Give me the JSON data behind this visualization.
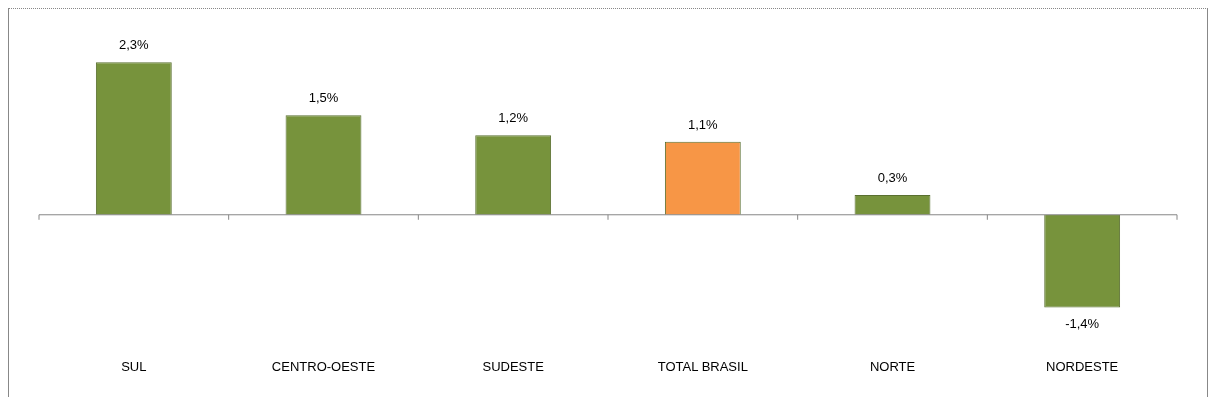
{
  "chart_data": {
    "type": "bar",
    "categories": [
      "SUL",
      "CENTRO-OESTE",
      "SUDESTE",
      "TOTAL BRASIL",
      "NORTE",
      "NORDESTE"
    ],
    "values": [
      2.3,
      1.5,
      1.2,
      1.1,
      0.3,
      -1.4
    ],
    "value_labels": [
      "2,3%",
      "1,5%",
      "1,2%",
      "1,1%",
      "0,3%",
      "-1,4%"
    ],
    "colors": [
      "#77933c",
      "#77933c",
      "#77933c",
      "#f79646",
      "#77933c",
      "#77933c"
    ],
    "tick_labels": "x",
    "legend": false,
    "grid": false
  }
}
